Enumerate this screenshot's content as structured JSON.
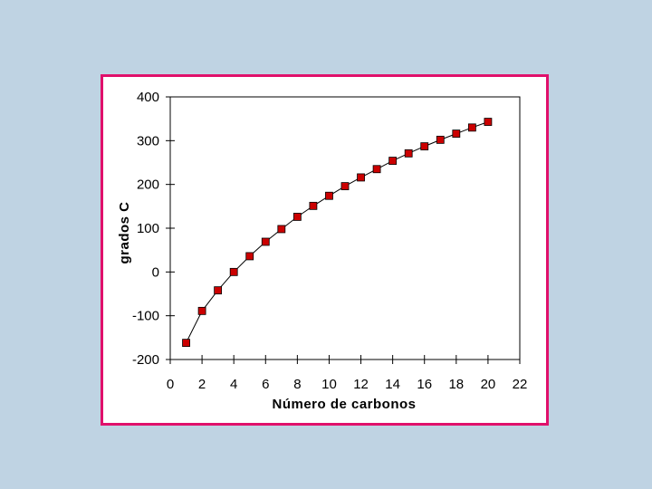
{
  "colors": {
    "background": "#bfd3e3",
    "frame_border": "#e0106b",
    "marker_fill": "#cc0000",
    "line": "#000000"
  },
  "chart_data": {
    "type": "line",
    "xlabel": "Número de carbonos",
    "ylabel": "grados C",
    "xlim": [
      0,
      22
    ],
    "ylim": [
      -200,
      400
    ],
    "x_ticks": [
      0,
      2,
      4,
      6,
      8,
      10,
      12,
      14,
      16,
      18,
      20,
      22
    ],
    "y_ticks": [
      -200,
      -100,
      0,
      100,
      200,
      300,
      400
    ],
    "grid": false,
    "marker": "square",
    "series": [
      {
        "x": [
          1,
          2,
          3,
          4,
          5,
          6,
          7,
          8,
          9,
          10,
          11,
          12,
          13,
          14,
          15,
          16,
          17,
          18,
          19,
          20
        ],
        "y": [
          -162,
          -89,
          -42,
          0,
          36,
          69,
          98,
          126,
          151,
          174,
          196,
          216,
          235,
          254,
          271,
          287,
          302,
          316,
          330,
          343
        ]
      }
    ]
  }
}
